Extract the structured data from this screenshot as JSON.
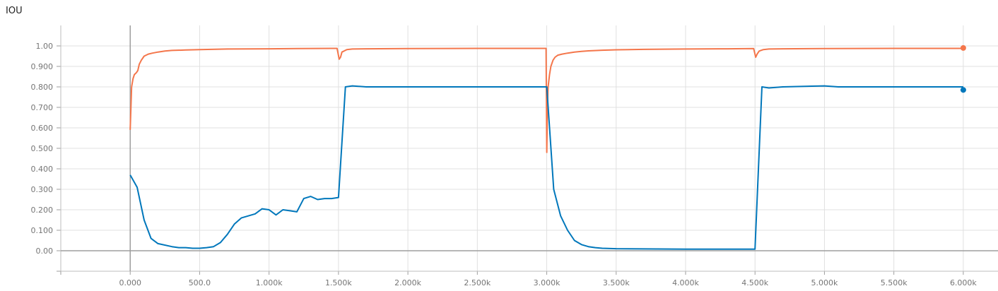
{
  "chart_data": {
    "type": "line",
    "title": "IOU",
    "xlabel": "",
    "ylabel": "",
    "xlim": [
      -500,
      6250
    ],
    "ylim": [
      -0.1,
      1.1
    ],
    "grid": true,
    "legend": "none",
    "x_ticks": [
      {
        "value": 0,
        "label": "0.000"
      },
      {
        "value": 500,
        "label": "500.0"
      },
      {
        "value": 1000,
        "label": "1.000k"
      },
      {
        "value": 1500,
        "label": "1.500k"
      },
      {
        "value": 2000,
        "label": "2.000k"
      },
      {
        "value": 2500,
        "label": "2.500k"
      },
      {
        "value": 3000,
        "label": "3.000k"
      },
      {
        "value": 3500,
        "label": "3.500k"
      },
      {
        "value": 4000,
        "label": "4.000k"
      },
      {
        "value": 4500,
        "label": "4.500k"
      },
      {
        "value": 5000,
        "label": "5.000k"
      },
      {
        "value": 5500,
        "label": "5.500k"
      },
      {
        "value": 6000,
        "label": "6.000k"
      }
    ],
    "y_ticks": [
      {
        "value": 0.0,
        "label": "0.00"
      },
      {
        "value": 0.1,
        "label": "0.100"
      },
      {
        "value": 0.2,
        "label": "0.200"
      },
      {
        "value": 0.3,
        "label": "0.300"
      },
      {
        "value": 0.4,
        "label": "0.400"
      },
      {
        "value": 0.5,
        "label": "0.500"
      },
      {
        "value": 0.6,
        "label": "0.600"
      },
      {
        "value": 0.7,
        "label": "0.700"
      },
      {
        "value": 0.8,
        "label": "0.800"
      },
      {
        "value": 0.9,
        "label": "0.900"
      },
      {
        "value": 1.0,
        "label": "1.00"
      }
    ],
    "series": [
      {
        "color": "#f4764b",
        "x": [
          0,
          10,
          20,
          30,
          45,
          55,
          65,
          80,
          100,
          130,
          160,
          200,
          250,
          300,
          400,
          500,
          700,
          1000,
          1200,
          1450,
          1490,
          1505,
          1515,
          1525,
          1540,
          1560,
          1600,
          1700,
          2000,
          2500,
          2995,
          3000,
          3005,
          3010,
          3020,
          3030,
          3045,
          3060,
          3080,
          3110,
          3150,
          3200,
          3250,
          3300,
          3400,
          3500,
          3700,
          4000,
          4300,
          4490,
          4505,
          4515,
          4530,
          4560,
          4600,
          4700,
          5000,
          5500,
          6000
        ],
        "y": [
          0.59,
          0.8,
          0.84,
          0.86,
          0.87,
          0.88,
          0.91,
          0.93,
          0.95,
          0.96,
          0.965,
          0.97,
          0.975,
          0.978,
          0.98,
          0.982,
          0.985,
          0.986,
          0.987,
          0.988,
          0.988,
          0.935,
          0.945,
          0.97,
          0.975,
          0.982,
          0.985,
          0.986,
          0.987,
          0.988,
          0.988,
          0.48,
          0.7,
          0.8,
          0.86,
          0.9,
          0.93,
          0.945,
          0.955,
          0.96,
          0.965,
          0.97,
          0.973,
          0.976,
          0.979,
          0.981,
          0.983,
          0.985,
          0.986,
          0.987,
          0.945,
          0.96,
          0.975,
          0.982,
          0.985,
          0.986,
          0.987,
          0.988,
          0.988
        ]
      },
      {
        "color": "#0077bb",
        "x": [
          0,
          50,
          100,
          150,
          200,
          300,
          350,
          400,
          450,
          500,
          550,
          600,
          650,
          700,
          750,
          800,
          900,
          950,
          1000,
          1050,
          1100,
          1150,
          1200,
          1250,
          1300,
          1350,
          1400,
          1450,
          1500,
          1550,
          1600,
          1700,
          1800,
          1900,
          2000,
          2200,
          2400,
          2600,
          2800,
          2950,
          3000,
          3050,
          3100,
          3150,
          3200,
          3250,
          3300,
          3350,
          3400,
          3500,
          4000,
          4500,
          4550,
          4600,
          4700,
          5000,
          5100,
          5500,
          5800,
          6000
        ],
        "y": [
          0.37,
          0.31,
          0.15,
          0.06,
          0.035,
          0.02,
          0.015,
          0.015,
          0.012,
          0.012,
          0.015,
          0.02,
          0.04,
          0.08,
          0.13,
          0.16,
          0.18,
          0.205,
          0.2,
          0.175,
          0.2,
          0.195,
          0.19,
          0.255,
          0.265,
          0.25,
          0.255,
          0.255,
          0.26,
          0.8,
          0.805,
          0.8,
          0.8,
          0.8,
          0.8,
          0.8,
          0.8,
          0.8,
          0.8,
          0.8,
          0.8,
          0.3,
          0.17,
          0.1,
          0.05,
          0.03,
          0.02,
          0.015,
          0.012,
          0.01,
          0.008,
          0.008,
          0.8,
          0.795,
          0.8,
          0.805,
          0.8,
          0.8,
          0.8,
          0.8
        ]
      }
    ],
    "end_markers": [
      {
        "x": 6000,
        "y": 0.99,
        "color": "#f4764b"
      },
      {
        "x": 6000,
        "y": 0.785,
        "color": "#0077bb"
      }
    ]
  }
}
